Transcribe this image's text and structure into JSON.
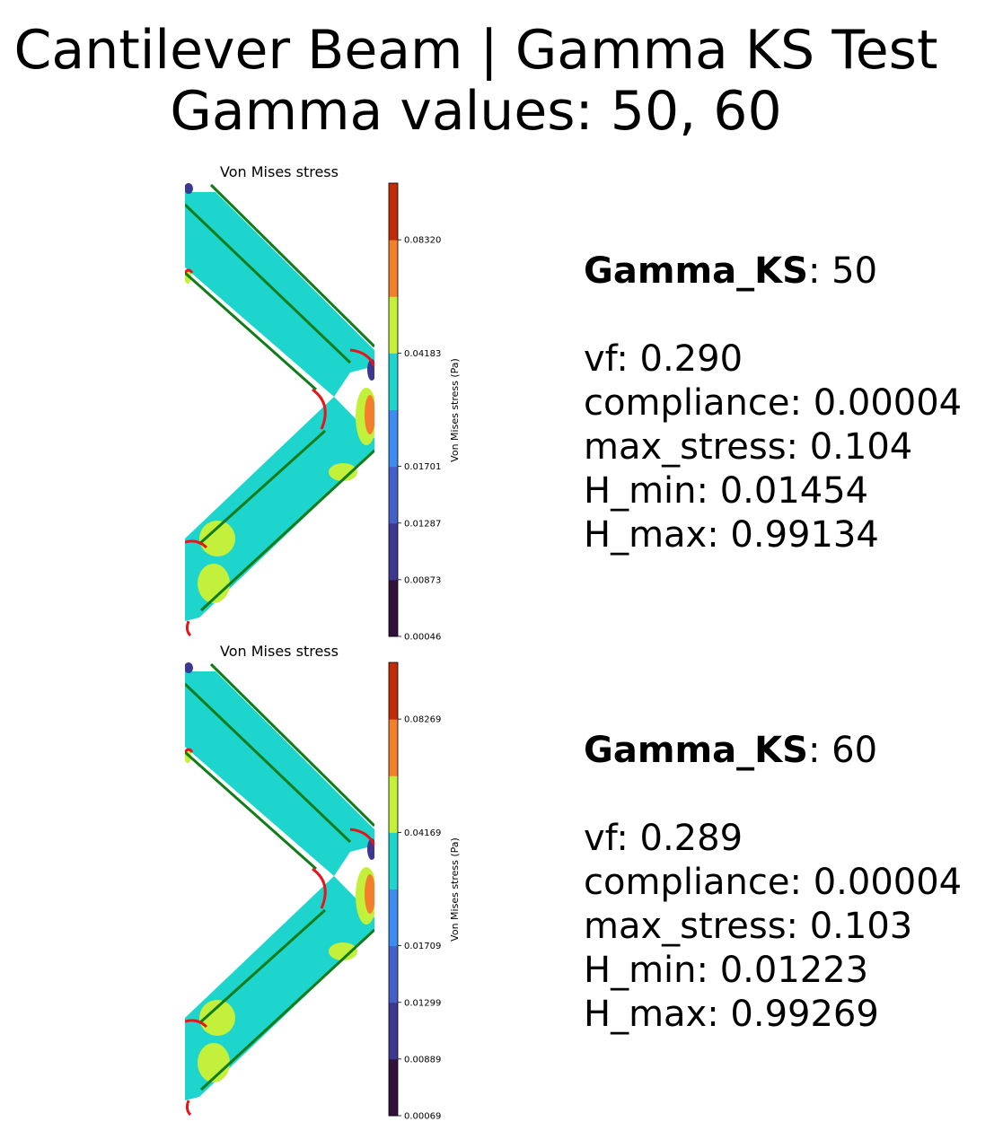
{
  "figure": {
    "title_line1": "Cantilever Beam | Gamma KS Test",
    "title_line2": "Gamma values: 50, 60"
  },
  "colors": {
    "beam_fill": "#1dd5cc",
    "hotspot": "#c3f03a",
    "peak": "#f47f2a",
    "boundary_red": "#e8141a",
    "boundary_green": "#117c19",
    "colorbar": [
      "#30123b",
      "#3e378f",
      "#4460c8",
      "#3d8cf2",
      "#1dd5cc",
      "#c3f03a",
      "#f47f2a",
      "#c02c05"
    ]
  },
  "panels": [
    {
      "plot_title": "Von Mises stress",
      "colorbar_label": "Von Mises stress (Pa)",
      "colorbar_ticks": [
        "0.08320",
        "0.04183",
        "0.01701",
        "0.01287",
        "0.00873",
        "0.00046"
      ],
      "gamma_label": "Gamma_KS",
      "gamma_value": ": 50",
      "metrics": [
        "vf: 0.290",
        "compliance: 0.00004",
        "max_stress: 0.104",
        "H_min: 0.01454",
        "H_max: 0.99134"
      ]
    },
    {
      "plot_title": "Von Mises stress",
      "colorbar_label": "Von Mises stress (Pa)",
      "colorbar_ticks": [
        "0.08269",
        "0.04169",
        "0.01709",
        "0.01299",
        "0.00889",
        "0.00069"
      ],
      "gamma_label": "Gamma_KS",
      "gamma_value": ": 60",
      "metrics": [
        "vf: 0.289",
        "compliance: 0.00004",
        "max_stress: 0.103",
        "H_min: 0.01223",
        "H_max: 0.99269"
      ]
    }
  ],
  "chart_data": [
    {
      "type": "heatmap",
      "title": "Von Mises stress",
      "colorbar": {
        "label": "Von Mises stress (Pa)",
        "ticks": [
          0.0832,
          0.04183,
          0.01701,
          0.01287,
          0.00873,
          0.00046
        ]
      }
    },
    {
      "type": "heatmap",
      "title": "Von Mises stress",
      "colorbar": {
        "label": "Von Mises stress (Pa)",
        "ticks": [
          0.08269,
          0.04169,
          0.01709,
          0.01299,
          0.00889,
          0.00069
        ]
      }
    }
  ]
}
